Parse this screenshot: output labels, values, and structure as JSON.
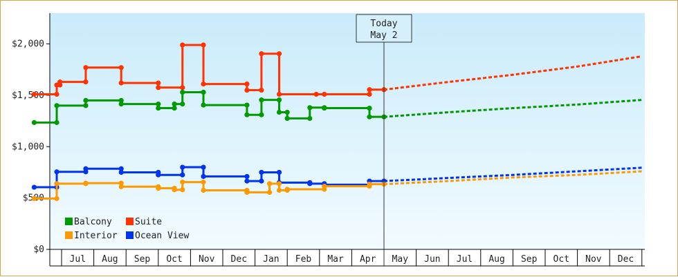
{
  "chart_data": {
    "type": "line",
    "title": "",
    "xlabel": "",
    "ylabel": "",
    "ylim": [
      0,
      2300
    ],
    "grid": false,
    "legend_placement": "bottom-left",
    "y_ticks": [
      {
        "value": 0,
        "label": "$0"
      },
      {
        "value": 500,
        "label": "$500"
      },
      {
        "value": 1000,
        "label": "$1,000"
      },
      {
        "value": 1500,
        "label": "$1,500"
      },
      {
        "value": 2000,
        "label": "$2,000"
      }
    ],
    "x_months": [
      "Jul",
      "Aug",
      "Sep",
      "Oct",
      "Nov",
      "Dec",
      "Jan",
      "Feb",
      "Mar",
      "Apr",
      "May",
      "Jun",
      "Jul",
      "Aug",
      "Sep",
      "Oct",
      "Nov",
      "Dec"
    ],
    "today": {
      "line1": "Today",
      "line2": "May 2",
      "x": 10.0
    },
    "series": [
      {
        "name": "Suite",
        "color": "#ff3300",
        "history": [
          [
            -0.85,
            1510
          ],
          [
            -0.15,
            1510
          ],
          [
            -0.15,
            1600
          ],
          [
            -0.05,
            1600
          ],
          [
            -0.05,
            1630
          ],
          [
            0.75,
            1630
          ],
          [
            0.75,
            1770
          ],
          [
            1.85,
            1770
          ],
          [
            1.85,
            1620
          ],
          [
            3.0,
            1620
          ],
          [
            3.0,
            1575
          ],
          [
            3.75,
            1575
          ],
          [
            3.75,
            1990
          ],
          [
            4.4,
            1990
          ],
          [
            4.4,
            1610
          ],
          [
            5.75,
            1610
          ],
          [
            5.75,
            1550
          ],
          [
            6.2,
            1550
          ],
          [
            6.2,
            1905
          ],
          [
            6.75,
            1905
          ],
          [
            6.75,
            1510
          ],
          [
            7.9,
            1510
          ],
          [
            7.9,
            1510
          ],
          [
            8.15,
            1510
          ],
          [
            8.15,
            1510
          ],
          [
            9.55,
            1510
          ],
          [
            9.55,
            1555
          ],
          [
            10.0,
            1555
          ]
        ],
        "forecast": [
          [
            10.0,
            1555
          ],
          [
            12.0,
            1630
          ],
          [
            14.0,
            1700
          ],
          [
            16.0,
            1780
          ],
          [
            18.0,
            1880
          ]
        ]
      },
      {
        "name": "Balcony",
        "color": "#009900",
        "history": [
          [
            -0.85,
            1235
          ],
          [
            -0.15,
            1235
          ],
          [
            -0.15,
            1400
          ],
          [
            0.75,
            1400
          ],
          [
            0.75,
            1450
          ],
          [
            1.85,
            1450
          ],
          [
            1.85,
            1415
          ],
          [
            3.0,
            1415
          ],
          [
            3.0,
            1375
          ],
          [
            3.5,
            1375
          ],
          [
            3.5,
            1415
          ],
          [
            3.75,
            1415
          ],
          [
            3.75,
            1530
          ],
          [
            4.4,
            1530
          ],
          [
            4.4,
            1405
          ],
          [
            5.75,
            1405
          ],
          [
            5.75,
            1310
          ],
          [
            6.2,
            1310
          ],
          [
            6.2,
            1455
          ],
          [
            6.75,
            1455
          ],
          [
            6.75,
            1335
          ],
          [
            7.0,
            1335
          ],
          [
            7.0,
            1275
          ],
          [
            7.7,
            1275
          ],
          [
            7.7,
            1380
          ],
          [
            8.15,
            1380
          ],
          [
            8.15,
            1375
          ],
          [
            9.55,
            1375
          ],
          [
            9.55,
            1290
          ],
          [
            10.0,
            1290
          ]
        ],
        "forecast": [
          [
            10.0,
            1290
          ],
          [
            12.0,
            1335
          ],
          [
            14.0,
            1375
          ],
          [
            16.0,
            1410
          ],
          [
            18.0,
            1455
          ]
        ]
      },
      {
        "name": "Ocean View",
        "color": "#0033ee",
        "history": [
          [
            -0.85,
            605
          ],
          [
            -0.15,
            605
          ],
          [
            -0.15,
            755
          ],
          [
            0.75,
            755
          ],
          [
            0.75,
            785
          ],
          [
            1.85,
            785
          ],
          [
            1.85,
            750
          ],
          [
            3.0,
            750
          ],
          [
            3.0,
            725
          ],
          [
            3.75,
            725
          ],
          [
            3.75,
            800
          ],
          [
            4.4,
            800
          ],
          [
            4.4,
            710
          ],
          [
            5.75,
            710
          ],
          [
            5.75,
            665
          ],
          [
            6.2,
            665
          ],
          [
            6.2,
            750
          ],
          [
            6.75,
            750
          ],
          [
            6.75,
            650
          ],
          [
            7.7,
            650
          ],
          [
            7.7,
            640
          ],
          [
            8.15,
            640
          ],
          [
            8.15,
            630
          ],
          [
            9.55,
            630
          ],
          [
            9.55,
            665
          ],
          [
            10.0,
            665
          ]
        ],
        "forecast": [
          [
            10.0,
            665
          ],
          [
            12.0,
            695
          ],
          [
            14.0,
            725
          ],
          [
            16.0,
            760
          ],
          [
            18.0,
            795
          ]
        ]
      },
      {
        "name": "Interior",
        "color": "#ff9900",
        "history": [
          [
            -0.85,
            495
          ],
          [
            -0.15,
            495
          ],
          [
            -0.15,
            640
          ],
          [
            0.75,
            640
          ],
          [
            0.75,
            645
          ],
          [
            1.85,
            645
          ],
          [
            1.85,
            610
          ],
          [
            3.0,
            610
          ],
          [
            3.0,
            595
          ],
          [
            3.5,
            595
          ],
          [
            3.5,
            580
          ],
          [
            3.75,
            580
          ],
          [
            3.75,
            655
          ],
          [
            4.4,
            655
          ],
          [
            4.4,
            575
          ],
          [
            5.75,
            575
          ],
          [
            5.75,
            555
          ],
          [
            6.45,
            555
          ],
          [
            6.45,
            640
          ],
          [
            6.75,
            640
          ],
          [
            6.75,
            575
          ],
          [
            7.0,
            575
          ],
          [
            7.0,
            585
          ],
          [
            8.15,
            585
          ],
          [
            8.15,
            615
          ],
          [
            9.55,
            615
          ],
          [
            9.55,
            635
          ],
          [
            10.0,
            635
          ]
        ],
        "forecast": [
          [
            10.0,
            635
          ],
          [
            12.0,
            665
          ],
          [
            14.0,
            700
          ],
          [
            16.0,
            725
          ],
          [
            18.0,
            760
          ]
        ]
      }
    ],
    "legend": [
      {
        "name": "Balcony",
        "color": "#009900"
      },
      {
        "name": "Suite",
        "color": "#ff3300"
      },
      {
        "name": "Interior",
        "color": "#ff9900"
      },
      {
        "name": "Ocean View",
        "color": "#0033ee"
      }
    ]
  }
}
